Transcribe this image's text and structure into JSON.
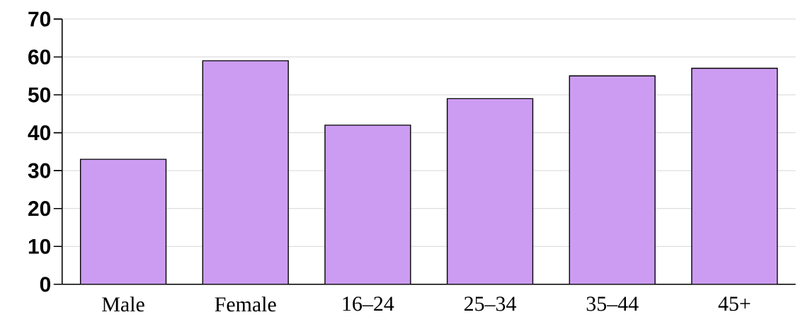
{
  "chart_data": {
    "type": "bar",
    "categories": [
      "Male",
      "Female",
      "16–24",
      "25–34",
      "35–44",
      "45+"
    ],
    "values": [
      33,
      59,
      42,
      49,
      55,
      57
    ],
    "color": "#cc9cf2",
    "ylim": [
      0,
      70
    ],
    "yticks": [
      0,
      10,
      20,
      30,
      40,
      50,
      60,
      70
    ],
    "grid": "y"
  }
}
